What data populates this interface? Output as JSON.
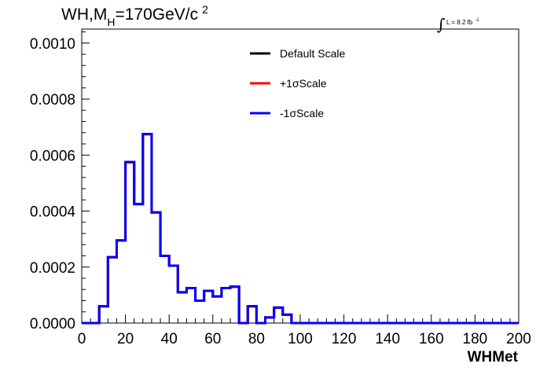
{
  "chart_data": {
    "type": "histogram",
    "title": {
      "prefix": "WH,M",
      "subscript": "H",
      "main": "=170GeV/c",
      "superscript": "2"
    },
    "luminosity": {
      "integral_symbol": "∫",
      "text": "L = 8.2 fb",
      "superscript": "-1"
    },
    "xlabel": "WHMet",
    "ylabel": "",
    "xlim": [
      0,
      200
    ],
    "ylim": [
      0,
      0.00105
    ],
    "x_ticks": [
      "0",
      "20",
      "40",
      "60",
      "80",
      "100",
      "120",
      "140",
      "160",
      "180",
      "200"
    ],
    "x_tick_values": [
      0,
      20,
      40,
      60,
      80,
      100,
      120,
      140,
      160,
      180,
      200
    ],
    "y_ticks": [
      "0.0000",
      "0.0002",
      "0.0004",
      "0.0006",
      "0.0008",
      "0.0010"
    ],
    "y_tick_values": [
      0,
      0.0002,
      0.0004,
      0.0006,
      0.0008,
      0.001
    ],
    "bin_edges": [
      0,
      4,
      8,
      12,
      16,
      20,
      24,
      28,
      32,
      36,
      40,
      44,
      48,
      52,
      56,
      60,
      64,
      68,
      72,
      76,
      80,
      84,
      88,
      92,
      96,
      100,
      104,
      108,
      112,
      116,
      120,
      124,
      128,
      132,
      136,
      140,
      144,
      148,
      152,
      156,
      160,
      164,
      168,
      172,
      176,
      180,
      184,
      188,
      192,
      196,
      200
    ],
    "legend": [
      {
        "label": "Default Scale",
        "color": "#000000"
      },
      {
        "label": "+1σScale",
        "color": "#ff0000"
      },
      {
        "label": "-1σScale",
        "color": "#0000ff"
      }
    ],
    "series": [
      {
        "name": "Default Scale",
        "color": "#000000",
        "values": [
          0,
          0,
          6e-05,
          0.000235,
          0.000295,
          0.000575,
          0.000425,
          0.000675,
          0.000395,
          0.00024,
          0.000205,
          0.00011,
          0.000125,
          8e-05,
          0.000115,
          9.5e-05,
          0.000125,
          0.00013,
          0,
          6e-05,
          0,
          2e-05,
          5.5e-05,
          3e-05,
          0,
          0,
          0,
          0,
          0,
          0,
          0,
          0,
          0,
          0,
          0,
          0,
          0,
          0,
          0,
          0,
          0,
          0,
          0,
          0,
          0,
          0,
          0,
          0,
          0,
          0
        ]
      },
      {
        "name": "+1σScale",
        "color": "#ff0000",
        "values": [
          0,
          0,
          6e-05,
          0.000235,
          0.000295,
          0.000575,
          0.000425,
          0.000675,
          0.000395,
          0.00024,
          0.000205,
          0.00011,
          0.000125,
          8e-05,
          0.000115,
          9.5e-05,
          0.000125,
          0.00013,
          0,
          6e-05,
          0,
          2e-05,
          5.5e-05,
          3e-05,
          0,
          0,
          0,
          0,
          0,
          0,
          0,
          0,
          0,
          0,
          0,
          0,
          0,
          0,
          0,
          0,
          0,
          0,
          0,
          0,
          0,
          0,
          0,
          0,
          0,
          0
        ]
      },
      {
        "name": "-1σScale",
        "color": "#0000ff",
        "values": [
          0,
          0,
          6e-05,
          0.000235,
          0.000295,
          0.000575,
          0.000425,
          0.000675,
          0.000395,
          0.00024,
          0.000205,
          0.00011,
          0.000125,
          8e-05,
          0.000115,
          9.5e-05,
          0.000125,
          0.00013,
          0,
          6e-05,
          0,
          2e-05,
          5.5e-05,
          3e-05,
          0,
          0,
          0,
          0,
          0,
          0,
          0,
          0,
          0,
          0,
          0,
          0,
          0,
          0,
          0,
          0,
          0,
          0,
          0,
          0,
          0,
          0,
          0,
          0,
          0,
          0
        ]
      }
    ],
    "grid": false
  }
}
